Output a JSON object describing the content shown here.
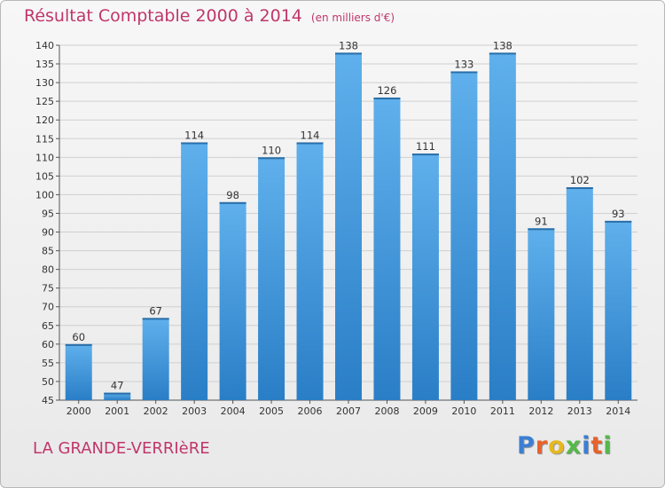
{
  "header": {
    "title": "Résultat Comptable 2000 à 2014",
    "subtitle": "(en milliers d'€)"
  },
  "footer": {
    "commune": "LA GRANDE-VERRIèRE",
    "logo": "Proxiti"
  },
  "colors": {
    "title": "#c0366a",
    "bar_top": "#5fb0ec",
    "bar_bottom": "#2a7ec6",
    "grid": "#cfcfcf",
    "logo": [
      "#3b7fd4",
      "#e8622c",
      "#e6b820",
      "#55b84a",
      "#3b7fd4",
      "#e8622c",
      "#55b84a"
    ]
  },
  "chart_data": {
    "type": "bar",
    "categories": [
      "2000",
      "2001",
      "2002",
      "2003",
      "2004",
      "2005",
      "2006",
      "2007",
      "2008",
      "2009",
      "2010",
      "2011",
      "2012",
      "2013",
      "2014"
    ],
    "values": [
      60,
      47,
      67,
      114,
      98,
      110,
      114,
      138,
      126,
      111,
      133,
      138,
      91,
      102,
      93
    ],
    "value_labels": [
      "60",
      "47",
      "67",
      "114",
      "98",
      "110",
      "114",
      "138",
      "126",
      "111",
      "133",
      "138",
      "91",
      "102",
      "93"
    ],
    "title": "Résultat Comptable 2000 à 2014",
    "xlabel": "",
    "ylabel": "",
    "ylim": [
      45,
      140
    ],
    "yticks": [
      45,
      50,
      55,
      60,
      65,
      70,
      75,
      80,
      85,
      90,
      95,
      100,
      105,
      110,
      115,
      120,
      125,
      130,
      135,
      140
    ],
    "grid": true,
    "legend": "none"
  }
}
